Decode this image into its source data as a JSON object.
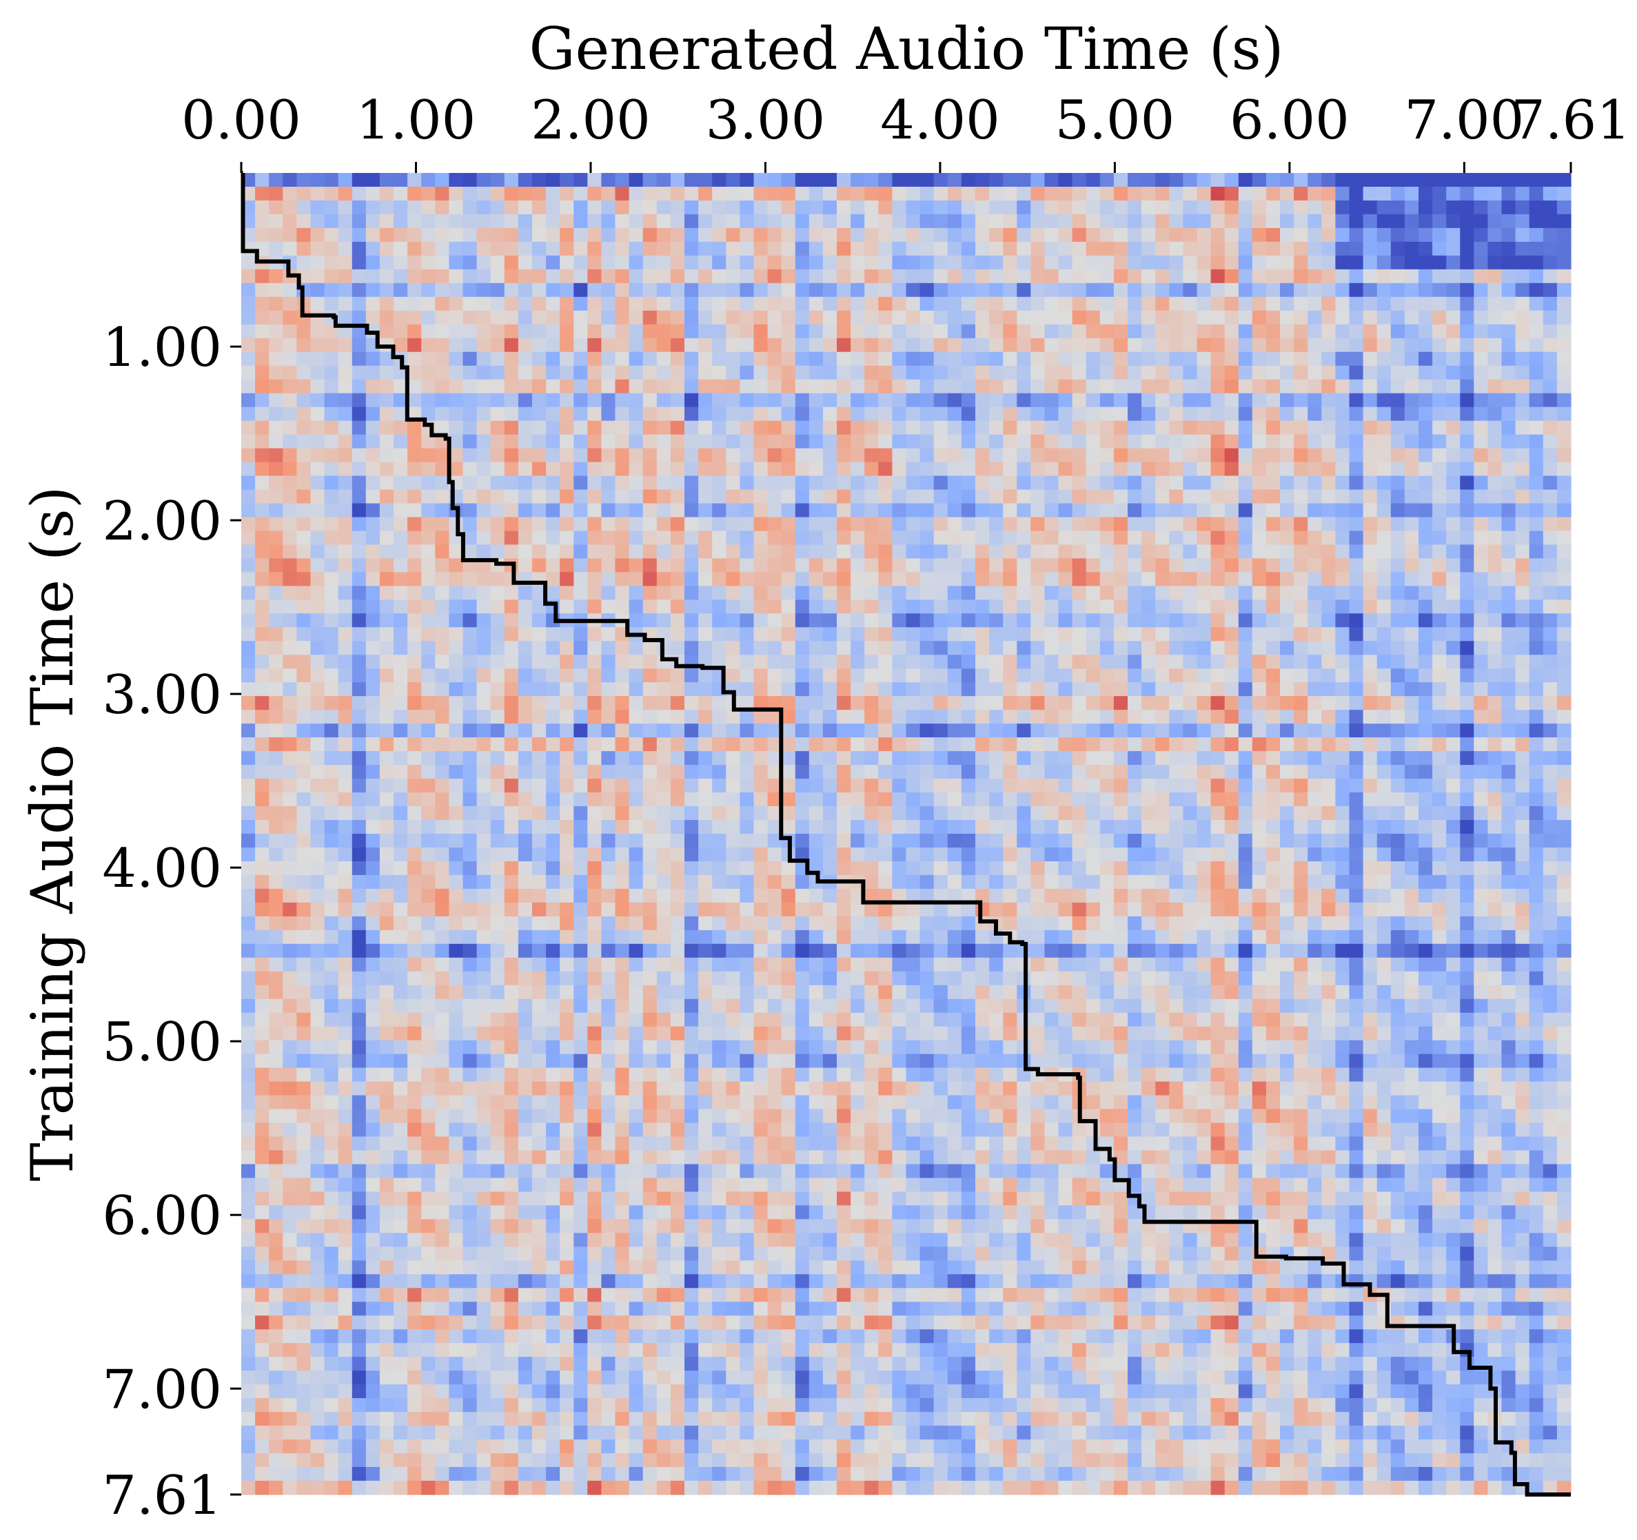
{
  "chart_data": {
    "type": "heatmap",
    "title": "",
    "xlabel": "Generated Audio Time (s)",
    "ylabel": "Training Audio Time (s)",
    "xlim": [
      0,
      7.61
    ],
    "ylim": [
      0,
      7.61
    ],
    "x_axis_position": "top",
    "y_axis_inverted": true,
    "xticks": [
      0.0,
      1.0,
      2.0,
      3.0,
      4.0,
      5.0,
      6.0,
      7.0,
      7.61
    ],
    "xtick_labels": [
      "0.00",
      "1.00",
      "2.00",
      "3.00",
      "4.00",
      "5.00",
      "6.00",
      "7.00",
      "7.61"
    ],
    "yticks": [
      1.0,
      2.0,
      3.0,
      4.0,
      5.0,
      6.0,
      7.0,
      7.61
    ],
    "ytick_labels": [
      "1.00",
      "2.00",
      "3.00",
      "4.00",
      "5.00",
      "6.00",
      "7.00",
      "7.61"
    ],
    "colormap": "coolwarm",
    "colors": {
      "low": "#3b4cc0",
      "mid": "#dddddd",
      "high": "#b40426",
      "path": "#000000"
    },
    "grid": false,
    "legend": "none",
    "alignment_path": {
      "name": "alignment path",
      "points": [
        [
          0.01,
          0.0
        ],
        [
          0.01,
          0.45
        ],
        [
          0.09,
          0.51
        ],
        [
          0.27,
          0.59
        ],
        [
          0.33,
          0.66
        ],
        [
          0.35,
          0.82
        ],
        [
          0.53,
          0.83
        ],
        [
          0.54,
          0.88
        ],
        [
          0.72,
          0.92
        ],
        [
          0.78,
          1.0
        ],
        [
          0.87,
          1.06
        ],
        [
          0.92,
          1.12
        ],
        [
          0.95,
          1.42
        ],
        [
          1.05,
          1.45
        ],
        [
          1.09,
          1.51
        ],
        [
          1.17,
          1.53
        ],
        [
          1.19,
          1.78
        ],
        [
          1.21,
          1.93
        ],
        [
          1.24,
          2.08
        ],
        [
          1.27,
          2.23
        ],
        [
          1.46,
          2.25
        ],
        [
          1.56,
          2.36
        ],
        [
          1.74,
          2.48
        ],
        [
          1.8,
          2.58
        ],
        [
          2.11,
          2.58
        ],
        [
          2.21,
          2.66
        ],
        [
          2.31,
          2.69
        ],
        [
          2.41,
          2.8
        ],
        [
          2.49,
          2.84
        ],
        [
          2.64,
          2.85
        ],
        [
          2.76,
          2.99
        ],
        [
          2.82,
          3.09
        ],
        [
          3.09,
          3.09
        ],
        [
          3.09,
          3.83
        ],
        [
          3.14,
          3.96
        ],
        [
          3.24,
          4.03
        ],
        [
          3.3,
          4.08
        ],
        [
          3.45,
          4.08
        ],
        [
          3.56,
          4.2
        ],
        [
          4.17,
          4.2
        ],
        [
          4.23,
          4.31
        ],
        [
          4.32,
          4.38
        ],
        [
          4.4,
          4.43
        ],
        [
          4.47,
          4.44
        ],
        [
          4.49,
          5.16
        ],
        [
          4.56,
          5.19
        ],
        [
          4.79,
          5.21
        ],
        [
          4.8,
          5.46
        ],
        [
          4.89,
          5.62
        ],
        [
          4.97,
          5.68
        ],
        [
          5.0,
          5.8
        ],
        [
          5.08,
          5.89
        ],
        [
          5.14,
          5.95
        ],
        [
          5.17,
          6.04
        ],
        [
          5.8,
          6.04
        ],
        [
          5.81,
          6.24
        ],
        [
          5.98,
          6.25
        ],
        [
          6.19,
          6.28
        ],
        [
          6.31,
          6.4
        ],
        [
          6.46,
          6.46
        ],
        [
          6.56,
          6.64
        ],
        [
          6.91,
          6.64
        ],
        [
          6.94,
          6.79
        ],
        [
          7.03,
          6.88
        ],
        [
          7.15,
          7.0
        ],
        [
          7.18,
          7.31
        ],
        [
          7.27,
          7.37
        ],
        [
          7.29,
          7.55
        ],
        [
          7.36,
          7.61
        ],
        [
          7.61,
          7.61
        ]
      ]
    }
  }
}
